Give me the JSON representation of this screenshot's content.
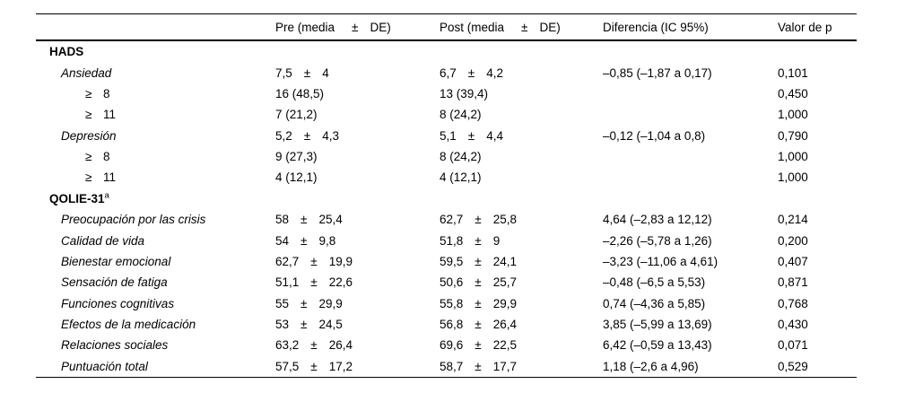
{
  "table": {
    "pm_symbol": "±",
    "header": {
      "pre": {
        "label": "Pre (media",
        "pm": "±",
        "unit": "DE)"
      },
      "post": {
        "label": "Post (media",
        "pm": "±",
        "unit": "DE)"
      },
      "diff": "Diferencia (IC 95%)",
      "p": "Valor de p"
    },
    "rows": [
      {
        "label": "HADS",
        "style": "section"
      },
      {
        "label": "Ansiedad",
        "style": "item",
        "pre": {
          "m": "7,5",
          "sd": "4"
        },
        "post": {
          "m": "6,7",
          "sd": "4,2"
        },
        "diff": "–0,85 (–1,87 a 0,17)",
        "p": "0,101"
      },
      {
        "label": "≥",
        "label2": "8",
        "style": "sub",
        "pre": {
          "n": "16 (48,5)"
        },
        "post": {
          "n": "13 (39,4)"
        },
        "p": "0,450"
      },
      {
        "label": "≥",
        "label2": "11",
        "style": "sub",
        "pre": {
          "n": "7 (21,2)"
        },
        "post": {
          "n": "8 (24,2)"
        },
        "p": "1,000"
      },
      {
        "label": "Depresión",
        "style": "item",
        "pre": {
          "m": "5,2",
          "sd": "4,3"
        },
        "post": {
          "m": "5,1",
          "sd": "4,4"
        },
        "diff": "–0,12 (–1,04 a 0,8)",
        "p": "0,790"
      },
      {
        "label": "≥",
        "label2": "8",
        "style": "sub",
        "pre": {
          "n": "9 (27,3)"
        },
        "post": {
          "n": "8 (24,2)"
        },
        "p": "1,000"
      },
      {
        "label": "≥",
        "label2": "11",
        "style": "sub",
        "pre": {
          "n": "4 (12,1)"
        },
        "post": {
          "n": "4 (12,1)"
        },
        "p": "1,000"
      },
      {
        "label": "QOLIE-31",
        "sup": "a",
        "style": "section"
      },
      {
        "label": "Preocupación por las crisis",
        "style": "item",
        "pre": {
          "m": "58",
          "sd": "25,4"
        },
        "post": {
          "m": "62,7",
          "sd": "25,8"
        },
        "diff": "4,64 (–2,83 a 12,12)",
        "p": "0,214"
      },
      {
        "label": "Calidad de vida",
        "style": "item",
        "pre": {
          "m": "54",
          "sd": "9,8"
        },
        "post": {
          "m": "51,8",
          "sd": "9"
        },
        "diff": "–2,26 (–5,78 a 1,26)",
        "p": "0,200"
      },
      {
        "label": "Bienestar emocional",
        "style": "item",
        "pre": {
          "m": "62,7",
          "sd": "19,9"
        },
        "post": {
          "m": "59,5",
          "sd": "24,1"
        },
        "diff": "–3,23 (–11,06 a 4,61)",
        "p": "0,407"
      },
      {
        "label": "Sensación de fatiga",
        "style": "item",
        "pre": {
          "m": "51,1",
          "sd": "22,6"
        },
        "post": {
          "m": "50,6",
          "sd": "25,7"
        },
        "diff": "–0,48 (–6,5 a 5,53)",
        "p": "0,871"
      },
      {
        "label": "Funciones cognitivas",
        "style": "item",
        "pre": {
          "m": "55",
          "sd": "29,9"
        },
        "post": {
          "m": "55,8",
          "sd": "29,9"
        },
        "diff": "0,74 (–4,36 a 5,85)",
        "p": "0,768"
      },
      {
        "label": "Efectos de la medicación",
        "style": "item",
        "pre": {
          "m": "53",
          "sd": "24,5"
        },
        "post": {
          "m": "56,8",
          "sd": "26,4"
        },
        "diff": "3,85 (–5,99 a 13,69)",
        "p": "0,430"
      },
      {
        "label": "Relaciones sociales",
        "style": "item",
        "pre": {
          "m": "63,2",
          "sd": "26,4"
        },
        "post": {
          "m": "69,6",
          "sd": "22,5"
        },
        "diff": "6,42 (–0,59 a 13,43)",
        "p": "0,071"
      },
      {
        "label": "Puntuación total",
        "style": "item",
        "pre": {
          "m": "57,5",
          "sd": "17,2"
        },
        "post": {
          "m": "58,7",
          "sd": "17,7"
        },
        "diff": "1,18 (–2,6 a 4,96)",
        "p": "0,529"
      }
    ]
  }
}
